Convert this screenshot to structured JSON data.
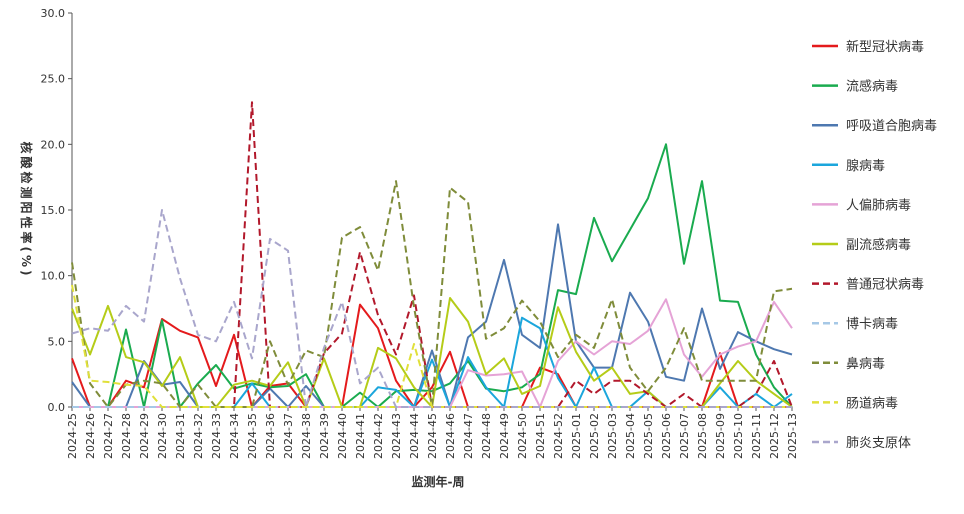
{
  "chart_data": {
    "type": "line",
    "xlabel": "监测年-周",
    "ylabel": "核酸检测阳性率(%)",
    "ylim": [
      0,
      30
    ],
    "yticks": [
      "0.0",
      "5.0",
      "10.0",
      "15.0",
      "20.0",
      "25.0",
      "30.0"
    ],
    "legend_position": "right",
    "categories": [
      "2024-25",
      "2024-26",
      "2024-27",
      "2024-28",
      "2024-29",
      "2024-30",
      "2024-31",
      "2024-32",
      "2024-33",
      "2024-34",
      "2024-35",
      "2024-36",
      "2024-37",
      "2024-38",
      "2024-39",
      "2024-40",
      "2024-41",
      "2024-42",
      "2024-43",
      "2024-44",
      "2024-45",
      "2024-46",
      "2024-47",
      "2024-48",
      "2024-49",
      "2024-50",
      "2024-51",
      "2024-52",
      "2025-01",
      "2025-02",
      "2025-03",
      "2025-04",
      "2025-05",
      "2025-06",
      "2025-07",
      "2025-08",
      "2025-09",
      "2025-10",
      "2025-11",
      "2025-12",
      "2025-13"
    ],
    "series": [
      {
        "name": "新型冠状病毒",
        "color": "#e41a1c",
        "dash": "solid",
        "values": [
          3.7,
          0.0,
          0.0,
          2.0,
          1.5,
          6.7,
          5.8,
          5.3,
          1.6,
          5.5,
          0.0,
          1.6,
          1.8,
          0.0,
          0.0,
          0.0,
          7.8,
          6.0,
          2.0,
          0.0,
          1.5,
          4.2,
          0.0,
          0.0,
          0.0,
          0.0,
          3.0,
          2.5,
          0.0,
          0.0,
          0.0,
          0.0,
          0.0,
          0.0,
          0.0,
          0.0,
          4.1,
          0.0,
          0.0,
          0.0,
          0.0
        ]
      },
      {
        "name": "流感病毒",
        "color": "#1aab4f",
        "dash": "solid",
        "values": [
          0.0,
          0.0,
          0.0,
          5.9,
          0.0,
          6.6,
          0.0,
          1.8,
          3.2,
          1.4,
          1.8,
          1.5,
          1.6,
          2.5,
          0.0,
          0.0,
          1.1,
          0.0,
          1.2,
          1.3,
          1.2,
          1.8,
          3.5,
          1.4,
          1.2,
          1.5,
          2.5,
          8.9,
          8.6,
          14.4,
          11.1,
          13.5,
          15.9,
          20.0,
          10.9,
          17.2,
          8.1,
          8.0,
          4.0,
          1.5,
          0.0
        ]
      },
      {
        "name": "呼吸道合胞病毒",
        "color": "#4e78b0",
        "dash": "solid",
        "values": [
          1.9,
          0.0,
          0.0,
          0.0,
          3.5,
          1.7,
          1.9,
          0.0,
          0.0,
          0.0,
          0.0,
          1.4,
          0.0,
          1.6,
          0.0,
          0.0,
          0.0,
          0.0,
          0.0,
          0.0,
          4.3,
          0.0,
          5.3,
          6.5,
          11.2,
          5.5,
          4.5,
          13.9,
          5.0,
          3.0,
          3.0,
          8.7,
          6.5,
          2.3,
          2.0,
          7.5,
          2.9,
          5.7,
          5.0,
          4.4,
          4.0
        ]
      },
      {
        "name": "腺病毒",
        "color": "#1ba6dc",
        "dash": "solid",
        "values": [
          0.0,
          0.0,
          0.0,
          0.0,
          0.0,
          0.0,
          0.0,
          0.0,
          0.0,
          0.0,
          1.8,
          0.0,
          0.0,
          0.0,
          0.0,
          0.0,
          0.0,
          1.5,
          1.3,
          0.0,
          3.6,
          0.0,
          3.8,
          1.5,
          0.0,
          6.8,
          6.0,
          2.2,
          0.0,
          3.0,
          0.0,
          0.0,
          1.2,
          0.0,
          0.0,
          0.0,
          1.5,
          0.0,
          1.0,
          0.0,
          1.0
        ]
      },
      {
        "name": "人偏肺病毒",
        "color": "#e5a3d6",
        "dash": "solid",
        "values": [
          0.0,
          0.0,
          0.0,
          0.0,
          0.0,
          0.0,
          0.0,
          0.0,
          0.0,
          0.0,
          0.0,
          0.0,
          0.0,
          0.0,
          0.0,
          0.0,
          0.0,
          0.0,
          0.0,
          0.0,
          0.0,
          0.0,
          2.8,
          2.4,
          2.5,
          2.7,
          0.0,
          3.5,
          5.0,
          4.0,
          5.0,
          4.8,
          5.8,
          8.2,
          4.0,
          2.3,
          4.0,
          4.6,
          5.0,
          8.0,
          6.0
        ]
      },
      {
        "name": "副流感病毒",
        "color": "#b5cc18",
        "dash": "solid",
        "values": [
          7.5,
          4.0,
          7.7,
          3.8,
          3.4,
          1.6,
          3.8,
          0.0,
          0.0,
          1.7,
          2.0,
          1.6,
          3.4,
          0.0,
          3.7,
          0.0,
          0.0,
          4.5,
          3.7,
          1.5,
          0.0,
          8.3,
          6.5,
          2.5,
          3.7,
          1.0,
          1.6,
          7.6,
          4.2,
          2.0,
          3.0,
          1.0,
          1.2,
          0.0,
          0.0,
          0.0,
          1.8,
          3.5,
          2.0,
          1.0,
          0.0
        ]
      },
      {
        "name": "普通冠状病毒",
        "color": "#b2182b",
        "dash": "dashed",
        "values": [
          0.0,
          0.0,
          0.0,
          0.0,
          0.0,
          0.0,
          0.0,
          0.0,
          0.0,
          0.0,
          23.2,
          0.0,
          0.0,
          0.0,
          4.1,
          5.6,
          11.8,
          7.0,
          4.0,
          8.5,
          0.0,
          0.0,
          0.0,
          0.0,
          0.0,
          0.0,
          0.0,
          0.0,
          2.0,
          1.0,
          2.0,
          2.0,
          1.0,
          0.0,
          1.0,
          0.0,
          0.0,
          0.0,
          1.0,
          3.5,
          0.0
        ]
      },
      {
        "name": "博卡病毒",
        "color": "#a6c8e6",
        "dash": "dashed",
        "values": [
          0.0,
          0.0,
          0.0,
          0.0,
          0.0,
          0.0,
          0.0,
          0.0,
          0.0,
          0.0,
          0.0,
          0.0,
          0.0,
          0.0,
          0.0,
          0.0,
          0.0,
          0.0,
          0.0,
          0.0,
          0.0,
          0.0,
          0.0,
          0.0,
          0.0,
          0.0,
          0.0,
          0.0,
          0.0,
          0.0,
          0.0,
          0.0,
          0.0,
          0.0,
          0.0,
          0.0,
          0.0,
          0.0,
          0.0,
          0.0,
          0.0
        ]
      },
      {
        "name": "鼻病毒",
        "color": "#7f8c3a",
        "dash": "dashed",
        "values": [
          11.0,
          1.8,
          0.0,
          1.7,
          2.0,
          1.8,
          0.0,
          1.7,
          0.0,
          0.0,
          0.0,
          5.0,
          1.7,
          4.3,
          3.8,
          12.9,
          13.7,
          10.4,
          17.2,
          7.6,
          0.0,
          16.7,
          15.6,
          5.2,
          6.0,
          8.1,
          6.5,
          3.8,
          5.5,
          4.5,
          8.2,
          3.0,
          1.2,
          3.0,
          6.0,
          2.0,
          2.0,
          2.0,
          2.0,
          8.8,
          9.0
        ]
      },
      {
        "name": "肠道病毒",
        "color": "#e0e03a",
        "dash": "dashed",
        "values": [
          9.3,
          2.0,
          1.9,
          1.7,
          1.6,
          0.0,
          0.0,
          0.0,
          0.0,
          0.0,
          0.0,
          0.0,
          0.0,
          0.0,
          0.0,
          0.0,
          0.0,
          0.0,
          0.0,
          4.8,
          0.0,
          0.0,
          0.0,
          0.0,
          0.0,
          0.0,
          0.0,
          0.0,
          0.0,
          0.0,
          0.0,
          0.0,
          0.0,
          0.0,
          0.0,
          0.0,
          0.0,
          0.0,
          0.0,
          0.0,
          0.0
        ]
      },
      {
        "name": "肺炎支原体",
        "color": "#a9a6cc",
        "dash": "dashed",
        "values": [
          5.6,
          6.0,
          5.8,
          7.7,
          6.5,
          15.0,
          9.8,
          5.5,
          5.0,
          8.0,
          3.7,
          12.8,
          11.9,
          0.0,
          4.5,
          8.0,
          1.8,
          3.0,
          0.0,
          0.0,
          0.0,
          0.0,
          0.0,
          0.0,
          0.0,
          0.0,
          0.0,
          0.0,
          0.0,
          0.0,
          0.0,
          0.0,
          0.0,
          0.0,
          0.0,
          0.0,
          0.0,
          0.0,
          0.0,
          0.0,
          0.0
        ]
      }
    ]
  }
}
